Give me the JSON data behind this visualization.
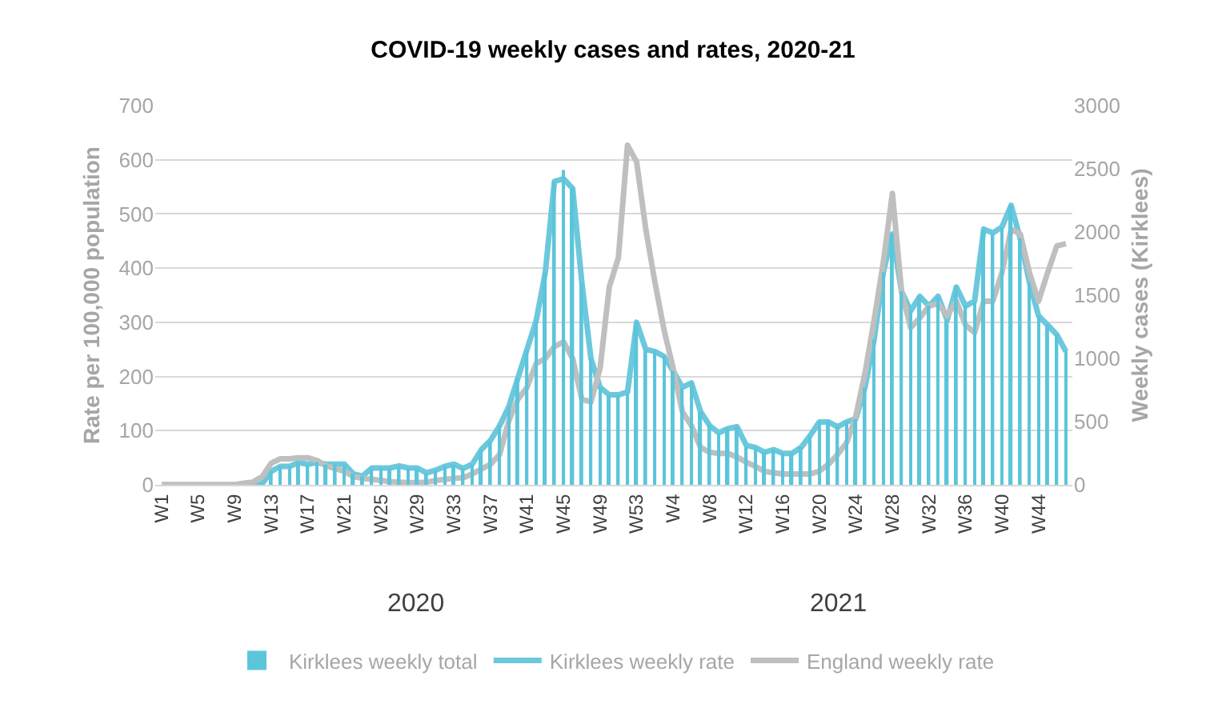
{
  "chart_data": {
    "type": "bar",
    "title": "COVID-19 weekly cases and rates, 2020-21",
    "ylabel": "Rate per 100,000 population",
    "y2label": "Weekly cases (Kirklees)",
    "annotations": [
      "2020",
      "2021"
    ],
    "categories": [
      "W1",
      null,
      null,
      null,
      "W5",
      null,
      null,
      null,
      "W9",
      null,
      null,
      null,
      "W13",
      null,
      null,
      null,
      "W17",
      null,
      null,
      null,
      "W21",
      null,
      null,
      null,
      "W25",
      null,
      null,
      null,
      "W29",
      null,
      null,
      null,
      "W33",
      null,
      null,
      null,
      "W37",
      null,
      null,
      null,
      "W41",
      null,
      null,
      null,
      "W45",
      null,
      null,
      null,
      "W49",
      null,
      null,
      null,
      "W53",
      null,
      null,
      null,
      "W4",
      null,
      null,
      null,
      "W8",
      null,
      null,
      null,
      "W12",
      null,
      null,
      null,
      "W16",
      null,
      null,
      null,
      "W20",
      null,
      null,
      null,
      "W24",
      null,
      null,
      null,
      "W28",
      null,
      null,
      null,
      "W32",
      null,
      null,
      null,
      "W36",
      null,
      null,
      null,
      "W40",
      null,
      null,
      null,
      "W44",
      null,
      null,
      null
    ],
    "series": [
      {
        "name": "Kirklees weekly total",
        "axis": "y2",
        "color": "#5bc5da",
        "values": [
          0,
          0,
          0,
          0,
          0,
          0,
          0,
          0,
          0,
          0,
          0,
          10,
          110,
          150,
          150,
          180,
          160,
          180,
          160,
          160,
          160,
          90,
          70,
          130,
          130,
          130,
          150,
          130,
          130,
          90,
          120,
          150,
          160,
          130,
          160,
          280,
          350,
          470,
          620,
          850,
          1070,
          1300,
          1680,
          2400,
          2490,
          2350,
          1600,
          1000,
          770,
          710,
          710,
          730,
          1290,
          1070,
          1060,
          1020,
          900,
          770,
          810,
          580,
          470,
          410,
          450,
          460,
          310,
          300,
          260,
          280,
          250,
          250,
          300,
          390,
          500,
          500,
          460,
          500,
          520,
          770,
          1150,
          1680,
          1990,
          1530,
          1380,
          1490,
          1420,
          1490,
          1300,
          1570,
          1420,
          1450,
          2020,
          1990,
          2040,
          2210,
          1950,
          1600,
          1340,
          1270,
          1190,
          1060
        ]
      },
      {
        "name": "Kirklees weekly rate",
        "type": "line",
        "color": "#6cc8dc",
        "values": [
          0,
          0,
          0,
          0,
          0,
          0,
          0,
          0,
          0,
          0,
          0,
          2,
          25,
          34,
          34,
          41,
          38,
          41,
          38,
          38,
          38,
          20,
          16,
          31,
          31,
          31,
          35,
          31,
          31,
          22,
          27,
          34,
          38,
          30,
          38,
          65,
          82,
          109,
          144,
          197,
          250,
          303,
          392,
          560,
          565,
          547,
          374,
          233,
          180,
          166,
          166,
          171,
          300,
          250,
          246,
          237,
          210,
          180,
          188,
          135,
          109,
          96,
          104,
          107,
          73,
          69,
          60,
          65,
          58,
          58,
          69,
          91,
          116,
          116,
          107,
          116,
          122,
          180,
          268,
          392,
          463,
          357,
          321,
          348,
          330,
          348,
          304,
          365,
          330,
          339,
          472,
          465,
          476,
          516,
          454,
          374,
          312,
          295,
          277,
          246
        ]
      },
      {
        "name": "England weekly rate",
        "type": "line",
        "color": "#bfbfbf",
        "values": [
          0,
          0,
          0,
          0,
          0,
          0,
          0,
          0,
          0,
          3,
          5,
          15,
          40,
          48,
          48,
          50,
          50,
          45,
          35,
          30,
          25,
          15,
          12,
          10,
          8,
          6,
          5,
          4,
          4,
          5,
          8,
          10,
          12,
          13,
          20,
          29,
          38,
          56,
          118,
          158,
          180,
          224,
          233,
          255,
          264,
          233,
          158,
          153,
          215,
          365,
          419,
          627,
          596,
          472,
          374,
          286,
          215,
          135,
          109,
          69,
          60,
          58,
          58,
          51,
          42,
          34,
          25,
          22,
          20,
          20,
          20,
          20,
          25,
          38,
          56,
          78,
          127,
          206,
          304,
          410,
          538,
          357,
          290,
          308,
          330,
          335,
          312,
          339,
          295,
          281,
          339,
          339,
          392,
          472,
          463,
          392,
          339,
          392,
          441,
          445
        ]
      }
    ],
    "ylim": [
      0,
      700
    ],
    "yticks": [
      0,
      100,
      200,
      300,
      400,
      500,
      600,
      700
    ],
    "y2lim": [
      0,
      3000
    ],
    "y2ticks": [
      0,
      500,
      1000,
      1500,
      2000,
      2500,
      3000
    ],
    "grid": "y",
    "legend": "bottom",
    "marker": "none",
    "line_style": "solid"
  }
}
